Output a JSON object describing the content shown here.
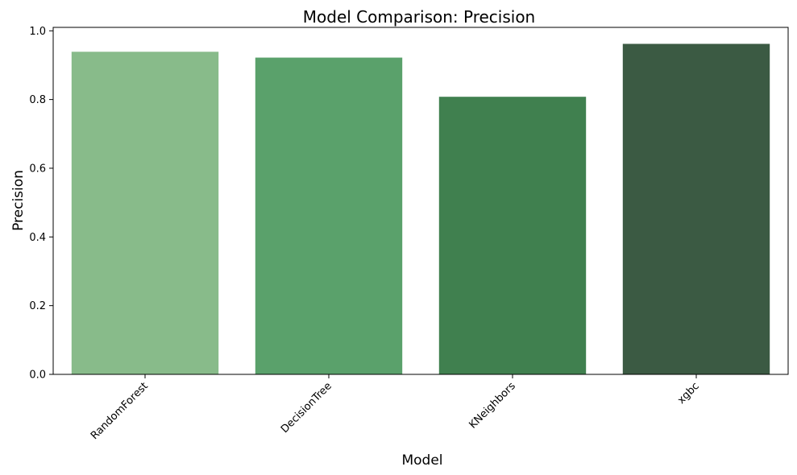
{
  "chart_data": {
    "type": "bar",
    "title": "Model Comparison: Precision",
    "xlabel": "Model",
    "ylabel": "Precision",
    "categories": [
      "RandomForest",
      "DecisionTree",
      "KNeighbors",
      "xgbc"
    ],
    "values": [
      0.939,
      0.922,
      0.808,
      0.962
    ],
    "colors": [
      "#88bb8a",
      "#5aa16b",
      "#40804f",
      "#3b5a43"
    ],
    "ylim": [
      0,
      1.01
    ],
    "yticks": [
      "0.0",
      "0.2",
      "0.4",
      "0.6",
      "0.8",
      "1.0"
    ],
    "ytick_values": [
      0,
      0.2,
      0.4,
      0.6,
      0.8,
      1.0
    ],
    "grid": false,
    "legend": "none"
  }
}
